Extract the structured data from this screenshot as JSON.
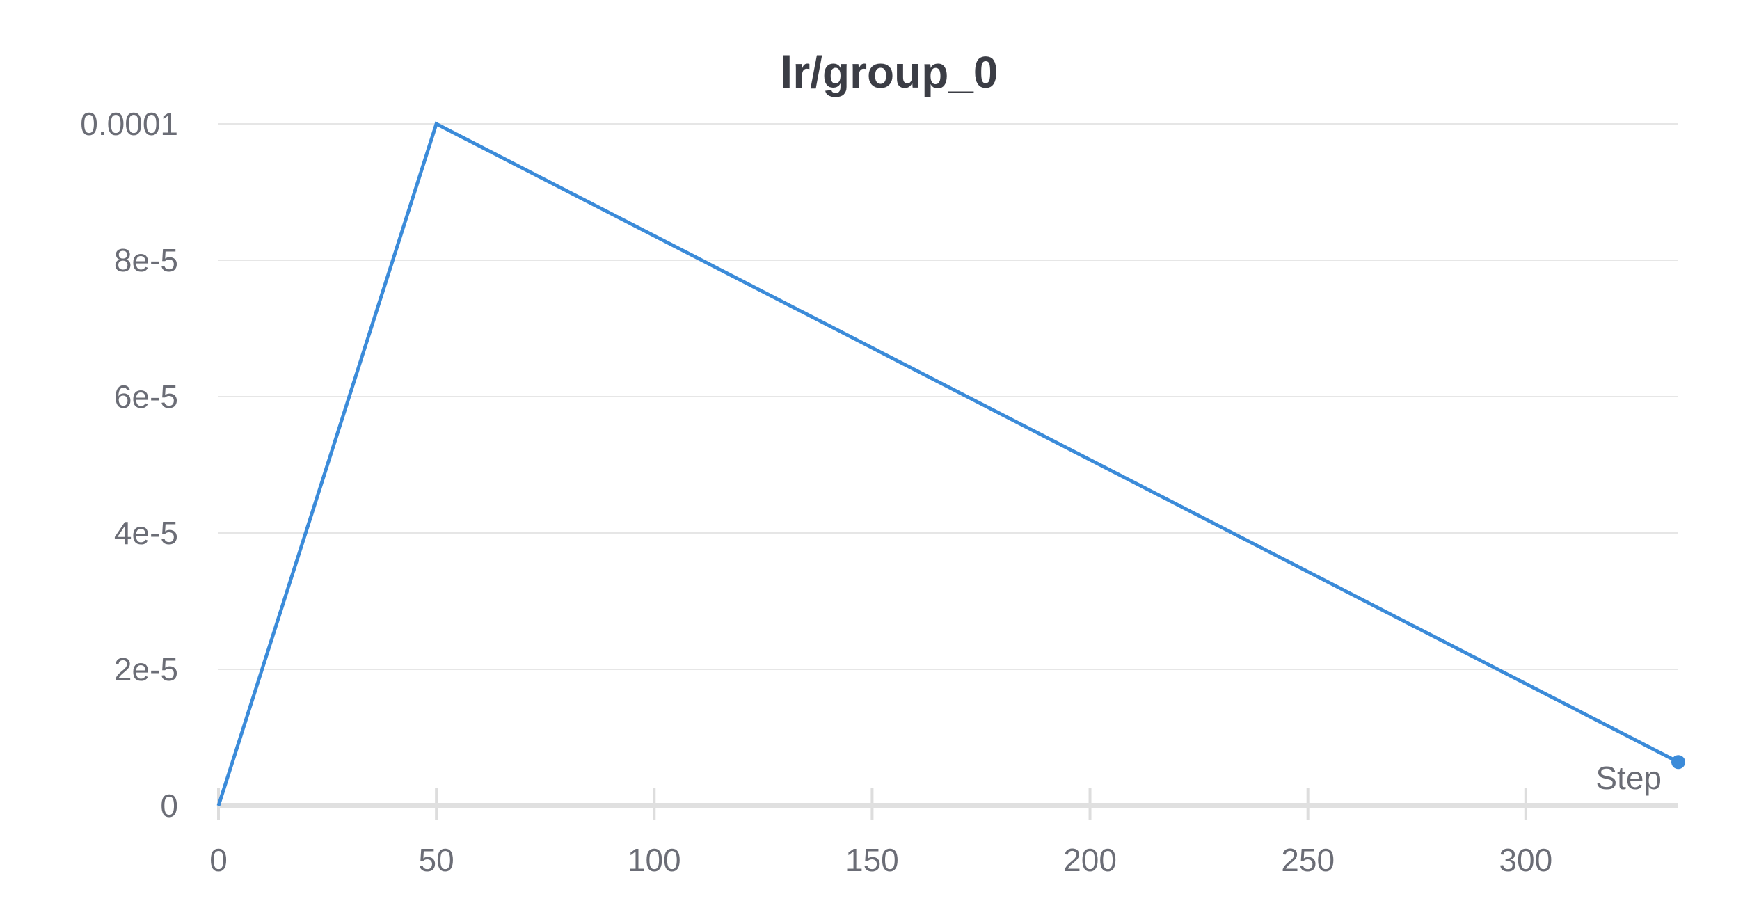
{
  "chart_data": {
    "type": "line",
    "title": "lr/group_0",
    "xlabel": "Step",
    "ylabel": "",
    "xlim": [
      0,
      335
    ],
    "ylim": [
      0,
      0.0001
    ],
    "x_ticks": [
      0,
      50,
      100,
      150,
      200,
      250,
      300
    ],
    "x_tick_labels": [
      "0",
      "50",
      "100",
      "150",
      "200",
      "250",
      "300"
    ],
    "y_ticks": [
      0,
      2e-05,
      4e-05,
      6e-05,
      8e-05,
      0.0001
    ],
    "y_tick_labels": [
      "0",
      "2e-5",
      "4e-5",
      "6e-5",
      "8e-5",
      "0.0001"
    ],
    "grid": true,
    "series": [
      {
        "color": "#3b8bd9",
        "x": [
          0,
          50,
          335
        ],
        "y": [
          0,
          0.0001,
          6.4e-06
        ]
      }
    ]
  }
}
